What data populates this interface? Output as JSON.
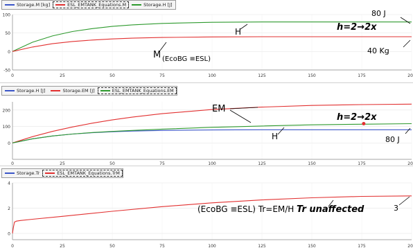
{
  "chart_data": [
    {
      "type": "line",
      "legend": [
        {
          "name": "Storage.M [kg]",
          "color": "#3a55c8",
          "selected": false
        },
        {
          "name": "ESL_EMTANK_Equations.M",
          "color": "#e23030",
          "selected": true
        },
        {
          "name": "Storage.H [J]",
          "color": "#2e9a2e",
          "selected": false
        }
      ],
      "xlim": [
        0,
        200
      ],
      "ylim": [
        -50,
        100
      ],
      "x_ticks": [
        0,
        25,
        50,
        75,
        100,
        125,
        150,
        175,
        200
      ],
      "x_tick_labels": [
        "0",
        "25",
        "50",
        "75",
        "100",
        "125",
        "150",
        "175",
        "200"
      ],
      "y_ticks": [
        -50,
        0,
        50,
        100
      ],
      "y_tick_labels": [
        "-50",
        "0",
        "50",
        "100"
      ],
      "series": [
        {
          "color": "#2e9a2e",
          "x": [
            0,
            10,
            20,
            30,
            40,
            50,
            60,
            75,
            100,
            125,
            150,
            175,
            200
          ],
          "values": [
            0,
            25,
            42,
            54,
            62,
            68,
            72,
            76,
            79,
            80,
            80,
            80,
            80
          ]
        },
        {
          "color": "#e23030",
          "x": [
            0,
            10,
            20,
            30,
            40,
            50,
            60,
            75,
            100,
            125,
            150,
            175,
            200
          ],
          "values": [
            0,
            12,
            21,
            27,
            31,
            34,
            36,
            38,
            39.5,
            40,
            40,
            40,
            40
          ]
        }
      ],
      "annotations": [
        {
          "text": "80 J",
          "style": "plain"
        },
        {
          "text": "h=2→2x",
          "style": "bold-italic"
        },
        {
          "text": "H",
          "style": "plain"
        },
        {
          "text": "M",
          "style": "plain"
        },
        {
          "text": "(EcoBG ≡ESL)",
          "style": "small"
        },
        {
          "text": "40 Kg",
          "style": "plain"
        }
      ]
    },
    {
      "type": "line",
      "legend": [
        {
          "name": "Storage.H [J]",
          "color": "#3a55c8",
          "selected": false
        },
        {
          "name": "Storage.EM [J]",
          "color": "#e23030",
          "selected": false
        },
        {
          "name": "ESL_EMTANK_Equations.EM",
          "color": "#2e9a2e",
          "selected": true
        }
      ],
      "xlim": [
        0,
        200
      ],
      "ylim": [
        -100,
        250
      ],
      "x_ticks": [
        0,
        25,
        50,
        75,
        100,
        125,
        150,
        175,
        200
      ],
      "x_tick_labels": [
        "0",
        "25",
        "50",
        "75",
        "100",
        "125",
        "150",
        "175",
        "200"
      ],
      "y_ticks": [
        0,
        100,
        200
      ],
      "y_tick_labels": [
        "0",
        "100",
        "200"
      ],
      "series": [
        {
          "color": "#3a55c8",
          "x": [
            0,
            10,
            20,
            30,
            40,
            50,
            60,
            75,
            100,
            125,
            150,
            175,
            200
          ],
          "values": [
            0,
            25,
            42,
            54,
            62,
            68,
            72,
            76,
            79,
            80,
            80,
            80,
            80
          ]
        },
        {
          "color": "#e23030",
          "x": [
            0,
            10,
            20,
            30,
            40,
            50,
            60,
            75,
            100,
            125,
            150,
            175,
            200
          ],
          "values": [
            0,
            38,
            70,
            97,
            120,
            140,
            157,
            178,
            203,
            218,
            228,
            233,
            236
          ]
        },
        {
          "color": "#2e9a2e",
          "x": [
            0,
            10,
            20,
            30,
            40,
            50,
            60,
            75,
            100,
            125,
            150,
            175,
            200
          ],
          "values": [
            0,
            25,
            42,
            54,
            63,
            70,
            76,
            84,
            95,
            103,
            110,
            114,
            117
          ]
        }
      ],
      "marker": {
        "x": 176,
        "y": 117,
        "color": "#e23030"
      },
      "annotations": [
        {
          "text": "EM",
          "style": "plain"
        },
        {
          "text": "h=2→2x",
          "style": "bold-italic"
        },
        {
          "text": "H",
          "style": "plain"
        },
        {
          "text": "80 J",
          "style": "plain"
        }
      ]
    },
    {
      "type": "line",
      "legend": [
        {
          "name": "Storage.Tr",
          "color": "#3a55c8",
          "selected": false
        },
        {
          "name": "ESL_EMTANK_Equations.TrM",
          "color": "#e23030",
          "selected": true
        }
      ],
      "xlim": [
        0,
        200
      ],
      "ylim": [
        -0.5,
        4
      ],
      "x_ticks": [
        0,
        25,
        50,
        75,
        100,
        125,
        150,
        175,
        200
      ],
      "x_tick_labels": [
        "0",
        "25",
        "50",
        "75",
        "100",
        "125",
        "150",
        "175",
        "200"
      ],
      "y_ticks": [
        0,
        2,
        4
      ],
      "y_tick_labels": [
        "0",
        "2",
        "4"
      ],
      "series": [
        {
          "color": "#e23030",
          "x": [
            0,
            0.5,
            1,
            2,
            4,
            10,
            25,
            50,
            75,
            100,
            125,
            150,
            175,
            200
          ],
          "values": [
            0,
            0.5,
            0.9,
            0.97,
            1.02,
            1.12,
            1.35,
            1.75,
            2.12,
            2.42,
            2.65,
            2.82,
            2.93,
            2.97
          ]
        }
      ],
      "annotations": [
        {
          "text": "(EcoBG ≡ESL) Tr=EM/H",
          "style": "plain"
        },
        {
          "text": "Tr unaffected",
          "style": "bold-italic"
        },
        {
          "text": "3",
          "style": "plain"
        }
      ]
    }
  ]
}
